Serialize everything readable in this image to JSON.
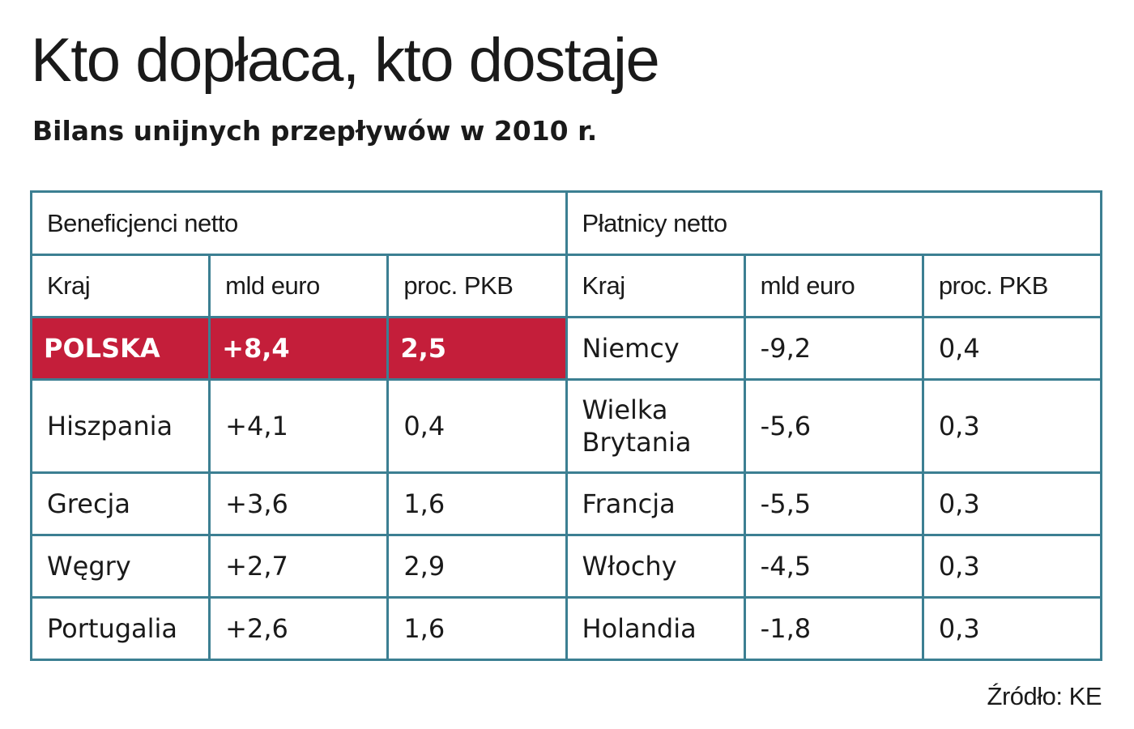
{
  "chart_data": {
    "type": "table",
    "title": "Kto dopłaca, kto dostaje",
    "subtitle": "Bilans unijnych przepływów w 2010 r.",
    "groups": [
      "Beneficjenci netto",
      "Płatnicy netto"
    ],
    "columns": [
      "Kraj",
      "mld euro",
      "proc. PKB"
    ],
    "beneficiaries": [
      {
        "country": "POLSKA",
        "eur_bn": "+8,4",
        "pct_gdp": "2,5"
      },
      {
        "country": "Hiszpania",
        "eur_bn": "+4,1",
        "pct_gdp": "0,4"
      },
      {
        "country": "Grecja",
        "eur_bn": "+3,6",
        "pct_gdp": "1,6"
      },
      {
        "country": "Węgry",
        "eur_bn": "+2,7",
        "pct_gdp": "2,9"
      },
      {
        "country": "Portugalia",
        "eur_bn": "+2,6",
        "pct_gdp": "1,6"
      }
    ],
    "payers": [
      {
        "country": "Niemcy",
        "eur_bn": "-9,2",
        "pct_gdp": "0,4"
      },
      {
        "country": "Wielka Brytania",
        "eur_bn": "-5,6",
        "pct_gdp": "0,3"
      },
      {
        "country": "Francja",
        "eur_bn": "-5,5",
        "pct_gdp": "0,3"
      },
      {
        "country": "Włochy",
        "eur_bn": "-4,5",
        "pct_gdp": "0,3"
      },
      {
        "country": "Holandia",
        "eur_bn": "-1,8",
        "pct_gdp": "0,3"
      }
    ],
    "highlight_row": 0,
    "highlight_color": "#c41e3a",
    "border_color": "#3c7f92",
    "source": "Źródło: KE"
  }
}
